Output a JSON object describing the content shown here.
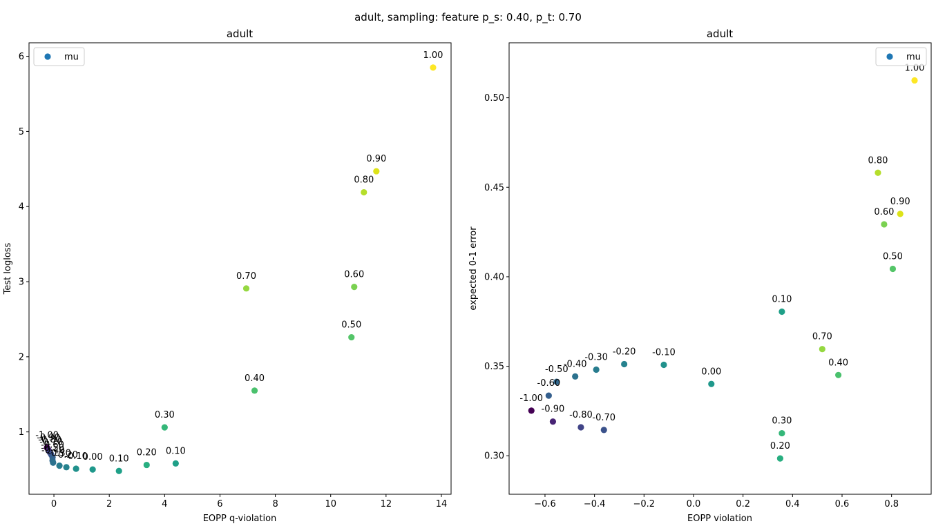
{
  "figure": {
    "suptitle": "adult, sampling: feature p_s: 0.40, p_t: 0.70"
  },
  "chart_data": [
    {
      "type": "scatter",
      "title": "adult",
      "xlabel": "EOPP q-violation",
      "ylabel": "Test logloss",
      "xlim": [
        -0.9,
        14.35
      ],
      "ylim": [
        0.17,
        6.18
      ],
      "xticks": [
        0,
        2,
        4,
        6,
        8,
        10,
        12,
        14
      ],
      "yticks": [
        1,
        2,
        3,
        4,
        5,
        6
      ],
      "xtick_labels": [
        "0",
        "2",
        "4",
        "6",
        "8",
        "10",
        "12",
        "14"
      ],
      "ytick_labels": [
        "1",
        "2",
        "3",
        "4",
        "5",
        "6"
      ],
      "legend": {
        "label": "mu",
        "color": "#1f77b4",
        "position": "upper-left"
      },
      "grid": false,
      "points": [
        {
          "label": "-1.00",
          "mu": -1.0,
          "x": -0.25,
          "y": 0.79,
          "color": "#440154"
        },
        {
          "label": "-0.90",
          "mu": -0.9,
          "x": -0.2,
          "y": 0.76,
          "color": "#482475"
        },
        {
          "label": "-0.80",
          "mu": -0.8,
          "x": -0.15,
          "y": 0.73,
          "color": "#414487"
        },
        {
          "label": "-0.70",
          "mu": -0.7,
          "x": -0.1,
          "y": 0.7,
          "color": "#3b528b"
        },
        {
          "label": "-0.60",
          "mu": -0.6,
          "x": -0.05,
          "y": 0.66,
          "color": "#355f8d"
        },
        {
          "label": "-0.50",
          "mu": -0.5,
          "x": -0.05,
          "y": 0.62,
          "color": "#31688e"
        },
        {
          "label": "-0.40",
          "mu": -0.4,
          "x": -0.03,
          "y": 0.59,
          "color": "#2c728e"
        },
        {
          "label": "-0.30",
          "mu": -0.3,
          "x": 0.2,
          "y": 0.55,
          "color": "#287c8e"
        },
        {
          "label": "-0.20",
          "mu": -0.2,
          "x": 0.45,
          "y": 0.53,
          "color": "#26828e"
        },
        {
          "label": "-0.10",
          "mu": -0.1,
          "x": 0.8,
          "y": 0.51,
          "color": "#21918c"
        },
        {
          "label": "0.00",
          "mu": 0.0,
          "x": 1.4,
          "y": 0.5,
          "color": "#1f988b"
        },
        {
          "label": "0.10",
          "mu": 0.1,
          "x": 2.35,
          "y": 0.48,
          "color": "#1fa088"
        },
        {
          "label": "0.20",
          "mu": 0.2,
          "x": 3.35,
          "y": 0.56,
          "color": "#28ae80"
        },
        {
          "label": "0.10",
          "mu": 0.1,
          "x": 4.4,
          "y": 0.58,
          "color": "#1fa088"
        },
        {
          "label": "0.30",
          "mu": 0.3,
          "x": 4.0,
          "y": 1.06,
          "color": "#35b779"
        },
        {
          "label": "0.40",
          "mu": 0.4,
          "x": 7.25,
          "y": 1.55,
          "color": "#4ac16d"
        },
        {
          "label": "0.50",
          "mu": 0.5,
          "x": 10.75,
          "y": 2.26,
          "color": "#54c568"
        },
        {
          "label": "0.60",
          "mu": 0.6,
          "x": 10.85,
          "y": 2.93,
          "color": "#7ad151"
        },
        {
          "label": "0.70",
          "mu": 0.7,
          "x": 6.95,
          "y": 2.91,
          "color": "#95d840"
        },
        {
          "label": "0.80",
          "mu": 0.8,
          "x": 11.2,
          "y": 4.19,
          "color": "#b5de2b"
        },
        {
          "label": "0.90",
          "mu": 0.9,
          "x": 11.65,
          "y": 4.47,
          "color": "#dde318"
        },
        {
          "label": "1.00",
          "mu": 1.0,
          "x": 13.7,
          "y": 5.85,
          "color": "#fde725"
        }
      ]
    },
    {
      "type": "scatter",
      "title": "adult",
      "xlabel": "EOPP violation",
      "ylabel": "expected 0-1 error",
      "xlim": [
        -0.745,
        0.96
      ],
      "ylim": [
        0.2785,
        0.5307
      ],
      "xticks": [
        -0.6,
        -0.4,
        -0.2,
        0.0,
        0.2,
        0.4,
        0.6,
        0.8
      ],
      "yticks": [
        0.3,
        0.35,
        0.4,
        0.45,
        0.5
      ],
      "xtick_labels": [
        "−0.6",
        "−0.4",
        "−0.2",
        "0.0",
        "0.2",
        "0.4",
        "0.6",
        "0.8"
      ],
      "ytick_labels": [
        "0.30",
        "0.35",
        "0.40",
        "0.45",
        "0.50"
      ],
      "legend": {
        "label": "mu",
        "color": "#1f77b4",
        "position": "upper-right"
      },
      "grid": false,
      "points": [
        {
          "label": "-1.00",
          "mu": -1.0,
          "x": -0.655,
          "y": 0.3252,
          "color": "#440154"
        },
        {
          "label": "-0.90",
          "mu": -0.9,
          "x": -0.568,
          "y": 0.3191,
          "color": "#482475"
        },
        {
          "label": "-0.80",
          "mu": -0.8,
          "x": -0.455,
          "y": 0.3159,
          "color": "#414487"
        },
        {
          "label": "-0.70",
          "mu": -0.7,
          "x": -0.362,
          "y": 0.3144,
          "color": "#3b528b"
        },
        {
          "label": "-0.60",
          "mu": -0.6,
          "x": -0.585,
          "y": 0.3336,
          "color": "#355f8d"
        },
        {
          "label": "-0.50",
          "mu": -0.5,
          "x": -0.553,
          "y": 0.3413,
          "color": "#31688e"
        },
        {
          "label": "-0.40",
          "mu": -0.4,
          "x": -0.478,
          "y": 0.3443,
          "color": "#2c728e"
        },
        {
          "label": "-0.30",
          "mu": -0.3,
          "x": -0.393,
          "y": 0.3481,
          "color": "#287c8e"
        },
        {
          "label": "-0.20",
          "mu": -0.2,
          "x": -0.28,
          "y": 0.3512,
          "color": "#26828e"
        },
        {
          "label": "-0.10",
          "mu": -0.1,
          "x": -0.12,
          "y": 0.3508,
          "color": "#21918c"
        },
        {
          "label": "0.00",
          "mu": 0.0,
          "x": 0.072,
          "y": 0.3401,
          "color": "#1f988b"
        },
        {
          "label": "0.10",
          "mu": 0.1,
          "x": 0.357,
          "y": 0.3805,
          "color": "#1fa088"
        },
        {
          "label": "0.20",
          "mu": 0.2,
          "x": 0.35,
          "y": 0.2985,
          "color": "#28ae80"
        },
        {
          "label": "0.30",
          "mu": 0.3,
          "x": 0.357,
          "y": 0.3126,
          "color": "#35b779"
        },
        {
          "label": "0.40",
          "mu": 0.4,
          "x": 0.585,
          "y": 0.3451,
          "color": "#4ac16d"
        },
        {
          "label": "0.50",
          "mu": 0.5,
          "x": 0.805,
          "y": 0.4044,
          "color": "#54c568"
        },
        {
          "label": "0.60",
          "mu": 0.6,
          "x": 0.77,
          "y": 0.4293,
          "color": "#7ad151"
        },
        {
          "label": "0.70",
          "mu": 0.7,
          "x": 0.52,
          "y": 0.3596,
          "color": "#95d840"
        },
        {
          "label": "0.80",
          "mu": 0.8,
          "x": 0.745,
          "y": 0.4581,
          "color": "#b5de2b"
        },
        {
          "label": "0.90",
          "mu": 0.9,
          "x": 0.835,
          "y": 0.4351,
          "color": "#dde318"
        },
        {
          "label": "1.00",
          "mu": 1.0,
          "x": 0.893,
          "y": 0.5097,
          "color": "#fde725"
        }
      ]
    }
  ]
}
